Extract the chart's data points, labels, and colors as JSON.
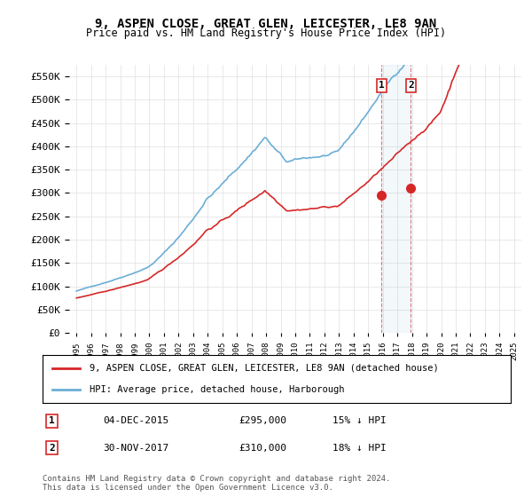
{
  "title_line1": "9, ASPEN CLOSE, GREAT GLEN, LEICESTER, LE8 9AN",
  "title_line2": "Price paid vs. HM Land Registry's House Price Index (HPI)",
  "ytick_vals": [
    0,
    50000,
    100000,
    150000,
    200000,
    250000,
    300000,
    350000,
    400000,
    450000,
    500000,
    550000
  ],
  "xlim": [
    1994.5,
    2025.5
  ],
  "ylim": [
    0,
    575000
  ],
  "hpi_color": "#6baed6",
  "price_color": "#d62728",
  "transaction1_date": 2015.92,
  "transaction1_price": 295000,
  "transaction2_date": 2017.92,
  "transaction2_price": 310000,
  "legend_label1": "9, ASPEN CLOSE, GREAT GLEN, LEICESTER, LE8 9AN (detached house)",
  "legend_label2": "HPI: Average price, detached house, Harborough",
  "annotation1_label": "1",
  "annotation2_label": "2",
  "table_row1": [
    "1",
    "04-DEC-2015",
    "£295,000",
    "15% ↓ HPI"
  ],
  "table_row2": [
    "2",
    "30-NOV-2017",
    "£310,000",
    "18% ↓ HPI"
  ],
  "footer": "Contains HM Land Registry data © Crown copyright and database right 2024.\nThis data is licensed under the Open Government Licence v3.0.",
  "background_color": "#ffffff",
  "grid_color": "#e0e0e0"
}
